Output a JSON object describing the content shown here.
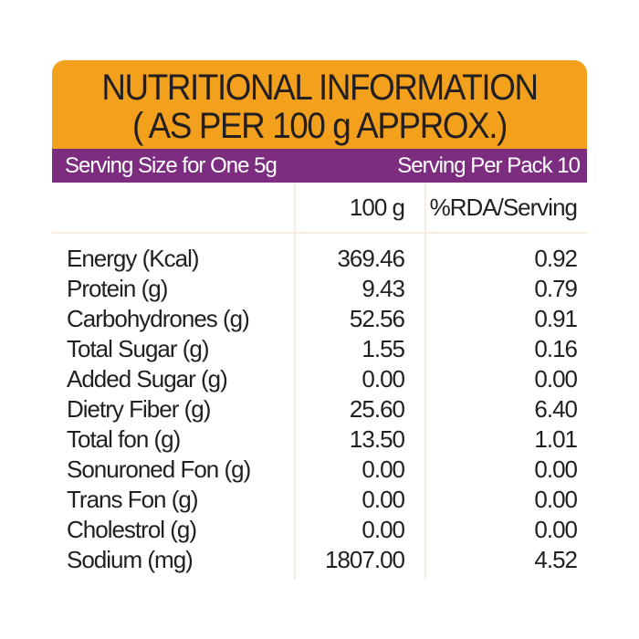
{
  "title": {
    "line1": "NUTRITIONAL INFORMATION",
    "line2": "( AS PER 100 g APPROX.)"
  },
  "serving": {
    "size": "Serving Size for One 5g",
    "per_pack": "Serving Per Pack 10"
  },
  "columns": {
    "per100": "100 g",
    "rda": "%RDA/Serving"
  },
  "colors": {
    "header": "#f3a11d",
    "band": "#7c2d80"
  },
  "rows": [
    {
      "label": "Energy (Kcal)",
      "per100": "369.46",
      "rda": "0.92"
    },
    {
      "label": "Protein (g)",
      "per100": "9.43",
      "rda": "0.79"
    },
    {
      "label": "Carbohydrones (g)",
      "per100": "52.56",
      "rda": "0.91"
    },
    {
      "label": "Total Sugar (g)",
      "per100": "1.55",
      "rda": "0.16"
    },
    {
      "label": "Added Sugar (g)",
      "per100": "0.00",
      "rda": "0.00"
    },
    {
      "label": "Dietry Fiber (g)",
      "per100": "25.60",
      "rda": "6.40"
    },
    {
      "label": "Total fon (g)",
      "per100": "13.50",
      "rda": "1.01"
    },
    {
      "label": "Sonuroned Fon (g)",
      "per100": "0.00",
      "rda": "0.00"
    },
    {
      "label": "Trans Fon (g)",
      "per100": "0.00",
      "rda": "0.00"
    },
    {
      "label": "Cholestrol (g)",
      "per100": "0.00",
      "rda": "0.00"
    },
    {
      "label": "Sodium (mg)",
      "per100": "1807.00",
      "rda": "4.52"
    }
  ]
}
